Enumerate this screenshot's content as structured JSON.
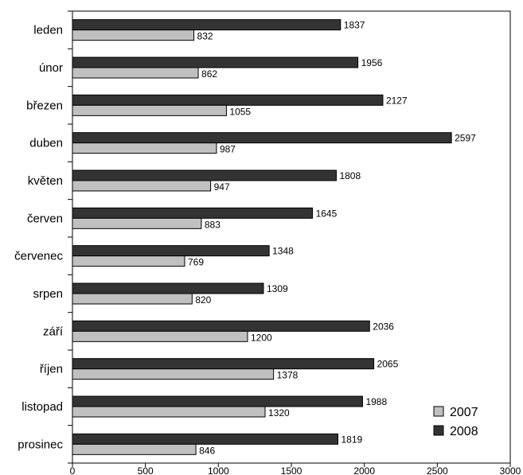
{
  "chart_data": {
    "type": "bar",
    "orientation": "horizontal",
    "categories": [
      "leden",
      "únor",
      "březen",
      "duben",
      "květen",
      "červen",
      "červenec",
      "srpen",
      "září",
      "říjen",
      "listopad",
      "prosinec"
    ],
    "series": [
      {
        "name": "2007",
        "color": "#c0c0c0",
        "values": [
          832,
          862,
          1055,
          987,
          947,
          883,
          769,
          820,
          1200,
          1378,
          1320,
          846
        ]
      },
      {
        "name": "2008",
        "color": "#333333",
        "values": [
          1837,
          1956,
          2127,
          2597,
          1808,
          1645,
          1348,
          1309,
          2036,
          2065,
          1988,
          1819
        ]
      }
    ],
    "x_ticks": [
      0,
      500,
      1000,
      1500,
      2000,
      2500,
      3000
    ],
    "xlim": [
      0,
      3000
    ],
    "grid": false,
    "legend_position": "bottom-right"
  }
}
